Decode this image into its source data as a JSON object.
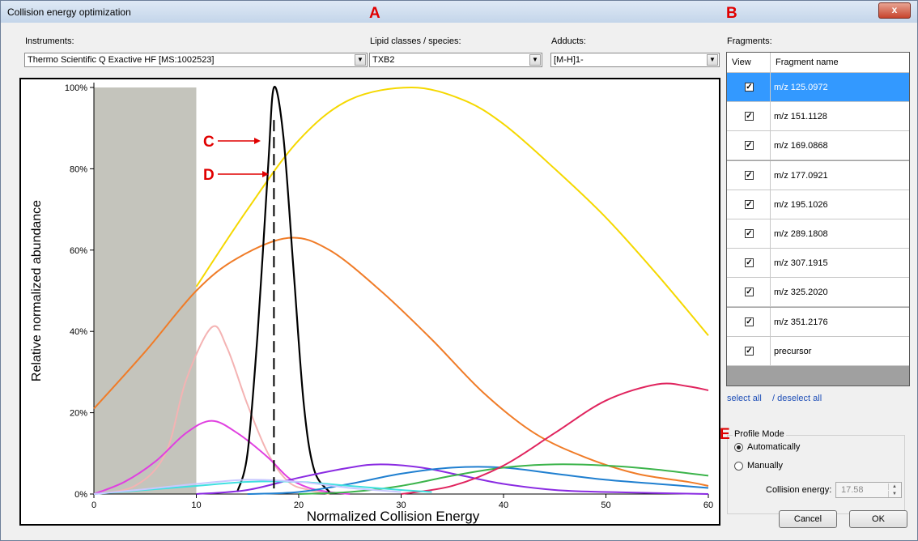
{
  "window": {
    "title": "Collision energy optimization",
    "close_glyph": "x"
  },
  "instruments": {
    "label": "Instruments:",
    "value": "Thermo Scientific Q Exactive HF [MS:1002523]"
  },
  "lipid_classes": {
    "label": "Lipid classes / species:",
    "value": "TXB2"
  },
  "adducts": {
    "label": "Adducts:",
    "value": "[M-H]1-"
  },
  "fragments": {
    "label": "Fragments:",
    "col_view": "View",
    "col_name": "Fragment name",
    "items": [
      {
        "name": "m/z 125.0972",
        "checked": true,
        "selected": true
      },
      {
        "name": "m/z 151.1128",
        "checked": true
      },
      {
        "name": "m/z 169.0868",
        "checked": true
      },
      {
        "name": "m/z 177.0921",
        "checked": true
      },
      {
        "name": "m/z 195.1026",
        "checked": true
      },
      {
        "name": "m/z 289.1808",
        "checked": true
      },
      {
        "name": "m/z 307.1915",
        "checked": true
      },
      {
        "name": "m/z 325.2020",
        "checked": true
      },
      {
        "name": "m/z 351.2176",
        "checked": true
      },
      {
        "name": "precursor",
        "checked": true
      }
    ],
    "select_all": "select all",
    "deselect_all": "/ deselect all"
  },
  "profile_mode": {
    "title": "Profile Mode",
    "auto_label": "Automatically",
    "manual_label": "Manually",
    "selected": "auto",
    "ce_label": "Collision energy:",
    "ce_value": "17.58"
  },
  "buttons": {
    "cancel": "Cancel",
    "ok": "OK"
  },
  "annotations": {
    "A": "A",
    "B": "B",
    "C": "C",
    "D": "D",
    "E": "E"
  },
  "colors": {
    "accent": "#3399ff",
    "annotation": "#e00000"
  },
  "chart_data": {
    "type": "line",
    "xlabel": "Normalized Collision Energy",
    "ylabel": "Relative normalized abundance",
    "xlim": [
      0,
      60
    ],
    "ylim": [
      0,
      100
    ],
    "x_ticks": [
      "0",
      "10",
      "20",
      "30",
      "40",
      "50",
      "60"
    ],
    "y_ticks": [
      "0%",
      "20%",
      "40%",
      "60%",
      "80%",
      "100%"
    ],
    "shaded_region": [
      0,
      10
    ],
    "optimal_energy": 17.58,
    "series": [
      {
        "color": "#f5d800",
        "points": [
          [
            10,
            51
          ],
          [
            15,
            70
          ],
          [
            20,
            87
          ],
          [
            25,
            97
          ],
          [
            31,
            100
          ],
          [
            36,
            97
          ],
          [
            40,
            91
          ],
          [
            45,
            80
          ],
          [
            50,
            68
          ],
          [
            55,
            54
          ],
          [
            60,
            39
          ]
        ]
      },
      {
        "color": "#f07c28",
        "points": [
          [
            0,
            21
          ],
          [
            5,
            35
          ],
          [
            10,
            50
          ],
          [
            14,
            58
          ],
          [
            19,
            63
          ],
          [
            23,
            60
          ],
          [
            28,
            50
          ],
          [
            33,
            38
          ],
          [
            38,
            25
          ],
          [
            43,
            15
          ],
          [
            48,
            9
          ],
          [
            53,
            5
          ],
          [
            58,
            3
          ],
          [
            60,
            2
          ]
        ]
      },
      {
        "color": "#f4b3b3",
        "points": [
          [
            0,
            0
          ],
          [
            4,
            2
          ],
          [
            7,
            10
          ],
          [
            9,
            28
          ],
          [
            11.5,
            41
          ],
          [
            13,
            36
          ],
          [
            15,
            22
          ],
          [
            17,
            10
          ],
          [
            19,
            3
          ],
          [
            21,
            1
          ],
          [
            23,
            0
          ]
        ]
      },
      {
        "color": "#e040e0",
        "points": [
          [
            0,
            0
          ],
          [
            3,
            3
          ],
          [
            6,
            8
          ],
          [
            9,
            15
          ],
          [
            11.5,
            18
          ],
          [
            14,
            15
          ],
          [
            17,
            9
          ],
          [
            19,
            4
          ],
          [
            21,
            1.5
          ],
          [
            23,
            0.5
          ],
          [
            25,
            0
          ]
        ]
      },
      {
        "color": "#000000",
        "points": [
          [
            14,
            0.5
          ],
          [
            15,
            10
          ],
          [
            16,
            40
          ],
          [
            17,
            80
          ],
          [
            17.58,
            100
          ],
          [
            18.5,
            88
          ],
          [
            19.5,
            55
          ],
          [
            20.5,
            22
          ],
          [
            21.5,
            6
          ],
          [
            23,
            0.5
          ]
        ]
      },
      {
        "color": "#8a2be2",
        "points": [
          [
            10,
            0
          ],
          [
            15,
            1
          ],
          [
            20,
            4
          ],
          [
            25,
            6.5
          ],
          [
            28,
            7.3
          ],
          [
            32,
            6.5
          ],
          [
            36,
            4.5
          ],
          [
            40,
            2.5
          ],
          [
            45,
            1
          ],
          [
            50,
            0.5
          ],
          [
            60,
            0
          ]
        ]
      },
      {
        "color": "#1f7fd0",
        "points": [
          [
            15,
            0
          ],
          [
            20,
            0.5
          ],
          [
            25,
            2.5
          ],
          [
            30,
            5
          ],
          [
            35,
            6.5
          ],
          [
            40,
            6.5
          ],
          [
            45,
            5
          ],
          [
            50,
            3.5
          ],
          [
            55,
            2.5
          ],
          [
            60,
            1.5
          ]
        ]
      },
      {
        "color": "#3cb44b",
        "points": [
          [
            20,
            0
          ],
          [
            25,
            0.5
          ],
          [
            30,
            2
          ],
          [
            35,
            4.5
          ],
          [
            40,
            6.5
          ],
          [
            45,
            7.3
          ],
          [
            50,
            7
          ],
          [
            55,
            6
          ],
          [
            60,
            4.5
          ]
        ]
      },
      {
        "color": "#e0245e",
        "points": [
          [
            30,
            0
          ],
          [
            35,
            2
          ],
          [
            40,
            7
          ],
          [
            45,
            15
          ],
          [
            50,
            23
          ],
          [
            55,
            27
          ],
          [
            58,
            26.5
          ],
          [
            60,
            25.5
          ]
        ]
      },
      {
        "color": "#40e0e0",
        "points": [
          [
            0,
            0
          ],
          [
            5,
            1
          ],
          [
            10,
            2
          ],
          [
            15,
            3
          ],
          [
            20,
            3
          ],
          [
            25,
            2
          ],
          [
            30,
            1
          ],
          [
            33,
            0.5
          ]
        ]
      },
      {
        "color": "#c8c8ff",
        "points": [
          [
            0,
            0
          ],
          [
            5,
            1.2
          ],
          [
            10,
            2.5
          ],
          [
            15,
            3.5
          ],
          [
            20,
            3
          ],
          [
            25,
            1.5
          ],
          [
            30,
            0.5
          ]
        ]
      }
    ]
  }
}
